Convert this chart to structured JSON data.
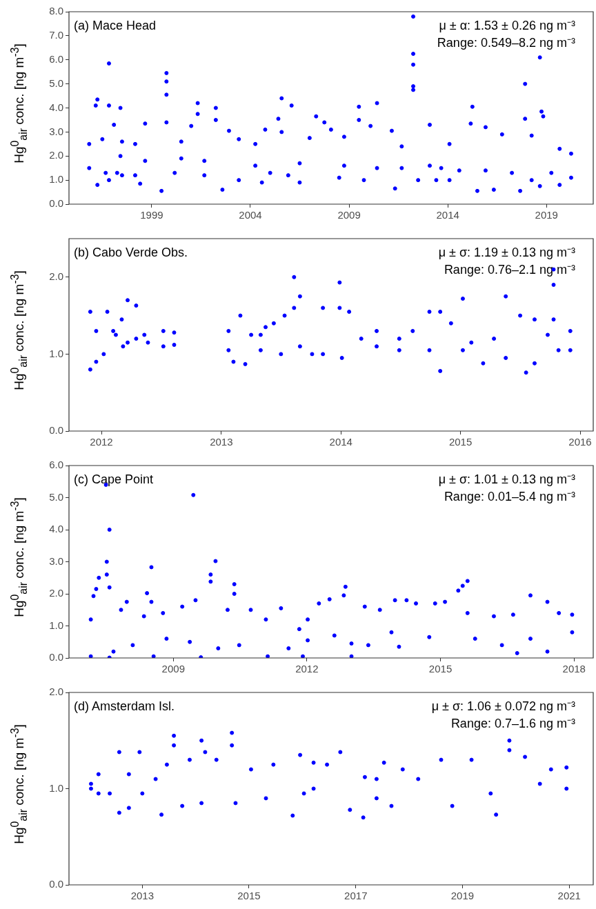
{
  "chart_data": [
    {
      "type": "scatter",
      "title": "(a) Mace Head",
      "ylabel": "Hg$^{0}$$_{air}$ conc. [ng m$^{-3}$]",
      "annotations": [
        "μ ± α: 1.53 ± 0.26 ng m⁻³",
        "Range: 0.549–8.2 ng m⁻³"
      ],
      "color": "#0000ff",
      "marker": "circle",
      "xlim": [
        "1994-10-23",
        "2021-05-15"
      ],
      "xticks": [
        "1999",
        "2004",
        "2009",
        "2014",
        "2019"
      ],
      "ylim": [
        0,
        8
      ],
      "yticks": [
        {
          "value": 0,
          "label": "0.0"
        },
        {
          "value": 1,
          "label": "1.0"
        },
        {
          "value": 2,
          "label": "2.0"
        },
        {
          "value": 3,
          "label": "3.0"
        },
        {
          "value": 4,
          "label": "4.0"
        },
        {
          "value": 5,
          "label": "5.0"
        },
        {
          "value": 6,
          "label": "6.0"
        },
        {
          "value": 7,
          "label": "7.0"
        },
        {
          "value": 8,
          "label": "8.0"
        }
      ],
      "x": [
        "1995-11",
        "1995-11",
        "1996-03",
        "1996-04",
        "1996-04",
        "1996-07",
        "1996-09",
        "1996-11",
        "1996-11",
        "1996-11",
        "1997-02",
        "1997-04",
        "1997-06",
        "1997-06",
        "1997-07",
        "1997-07",
        "1998-03",
        "1998-03",
        "1998-06",
        "1998-09",
        "1998-09",
        "1999-07",
        "1999-10",
        "1999-10",
        "1999-10",
        "1999-10",
        "2000-03",
        "2000-07",
        "2000-07",
        "2001-01",
        "2001-05",
        "2001-05",
        "2001-09",
        "2001-09",
        "2002-04",
        "2002-04",
        "2002-08",
        "2002-12",
        "2003-06",
        "2003-06",
        "2004-04",
        "2004-04",
        "2004-08",
        "2004-10",
        "2005-01",
        "2005-06",
        "2005-08",
        "2005-08",
        "2005-12",
        "2006-02",
        "2006-07",
        "2006-07",
        "2007-01",
        "2007-05",
        "2007-10",
        "2008-02",
        "2008-07",
        "2008-10",
        "2008-10",
        "2009-07",
        "2009-07",
        "2009-10",
        "2010-02",
        "2010-06",
        "2010-06",
        "2011-03",
        "2011-05",
        "2011-09",
        "2011-09",
        "2012-04",
        "2012-04",
        "2012-04",
        "2012-04",
        "2012-04",
        "2012-07",
        "2013-02",
        "2013-02",
        "2013-06",
        "2013-09",
        "2014-02",
        "2014-02",
        "2014-08",
        "2015-03",
        "2015-04",
        "2015-07",
        "2015-12",
        "2015-12",
        "2016-05",
        "2016-10",
        "2017-04",
        "2017-09",
        "2017-12",
        "2017-12",
        "2018-04",
        "2018-04",
        "2018-09",
        "2018-09",
        "2018-10",
        "2018-11",
        "2019-04",
        "2019-09",
        "2019-09",
        "2020-04",
        "2020-04"
      ],
      "values": [
        1.5,
        2.5,
        4.1,
        4.35,
        0.8,
        2.7,
        1.3,
        5.85,
        4.1,
        1.0,
        3.3,
        1.3,
        4.0,
        2.0,
        2.6,
        1.2,
        2.5,
        1.2,
        0.85,
        3.35,
        1.8,
        0.55,
        5.45,
        5.1,
        4.55,
        3.4,
        1.3,
        2.6,
        1.9,
        3.25,
        4.2,
        3.75,
        1.2,
        1.8,
        4.0,
        3.5,
        0.6,
        3.05,
        2.7,
        1.0,
        2.5,
        1.6,
        0.9,
        3.1,
        1.3,
        3.55,
        4.4,
        3.0,
        1.2,
        4.1,
        0.9,
        1.7,
        2.75,
        3.65,
        3.4,
        3.1,
        1.1,
        2.8,
        1.6,
        4.05,
        3.5,
        1.0,
        3.25,
        4.2,
        1.5,
        3.05,
        0.65,
        2.4,
        1.5,
        7.8,
        6.25,
        5.8,
        4.9,
        4.75,
        1.0,
        3.3,
        1.6,
        1.0,
        1.5,
        2.5,
        1.0,
        1.4,
        3.35,
        4.05,
        0.55,
        3.2,
        1.4,
        0.6,
        2.9,
        1.3,
        0.55,
        5.0,
        3.55,
        2.85,
        1.0,
        6.1,
        0.75,
        3.85,
        3.65,
        1.3,
        2.3,
        0.8,
        2.1,
        1.1
      ]
    },
    {
      "type": "scatter",
      "title": "(b) Cabo Verde Obs.",
      "ylabel": "Hg$^{0}$$_{air}$ conc. [ng m$^{-3}$]",
      "annotations": [
        "μ ± σ: 1.19 ± 0.13 ng m⁻³",
        "Range: 0.76–2.1 ng m⁻³"
      ],
      "color": "#0000ff",
      "marker": "circle",
      "xlim": [
        "2011-09-24",
        "2016-02-10"
      ],
      "xticks": [
        "2012",
        "2013",
        "2014",
        "2015",
        "2016"
      ],
      "ylim": [
        0,
        2.5
      ],
      "yticks": [
        {
          "value": 0,
          "label": "0.0"
        },
        {
          "value": 1,
          "label": "1.0"
        },
        {
          "value": 2,
          "label": "2.0"
        }
      ],
      "x": [
        "2011-11-28",
        "2011-11-28",
        "2011-12-16",
        "2011-12-16",
        "2012-01-08",
        "2012-01-19",
        "2012-02-06",
        "2012-02-14",
        "2012-03-03",
        "2012-03-07",
        "2012-03-21",
        "2012-03-21",
        "2012-04-16",
        "2012-04-16",
        "2012-05-11",
        "2012-05-22",
        "2012-07-08",
        "2012-07-08",
        "2012-08-10",
        "2012-08-10",
        "2013-01-23",
        "2013-01-23",
        "2013-02-07",
        "2013-02-28",
        "2013-03-15",
        "2013-04-02",
        "2013-05-01",
        "2013-05-01",
        "2013-05-16",
        "2013-06-10",
        "2013-07-02",
        "2013-07-13",
        "2013-08-11",
        "2013-08-11",
        "2013-08-29",
        "2013-08-29",
        "2013-10-05",
        "2013-11-07",
        "2013-11-07",
        "2013-12-28",
        "2013-12-28",
        "2014-01-04",
        "2014-01-26",
        "2014-03-04",
        "2014-04-20",
        "2014-04-20",
        "2014-06-28",
        "2014-06-28",
        "2014-08-08",
        "2014-09-28",
        "2014-09-28",
        "2014-10-31",
        "2014-10-31",
        "2014-12-03",
        "2015-01-08",
        "2015-01-08",
        "2015-02-03",
        "2015-03-11",
        "2015-04-13",
        "2015-05-19",
        "2015-05-19",
        "2015-07-02",
        "2015-07-20",
        "2015-08-15",
        "2015-08-15",
        "2015-09-24",
        "2015-10-12",
        "2015-10-12",
        "2015-10-12",
        "2015-10-27",
        "2015-12-02",
        "2015-12-02"
      ],
      "values": [
        1.55,
        0.8,
        1.3,
        0.9,
        1.0,
        1.55,
        1.3,
        1.25,
        1.45,
        1.1,
        1.7,
        1.15,
        1.63,
        1.2,
        1.25,
        1.15,
        1.3,
        1.1,
        1.28,
        1.12,
        1.3,
        1.05,
        0.9,
        1.5,
        0.87,
        1.25,
        1.05,
        1.25,
        1.35,
        1.4,
        1.0,
        1.5,
        2.0,
        1.6,
        1.75,
        1.1,
        1.0,
        1.6,
        1.0,
        1.93,
        1.6,
        0.95,
        1.55,
        1.2,
        1.3,
        1.1,
        1.2,
        1.05,
        1.3,
        1.55,
        1.05,
        1.55,
        0.78,
        1.4,
        1.72,
        1.05,
        1.15,
        0.88,
        1.2,
        1.75,
        0.95,
        1.5,
        0.76,
        1.45,
        0.88,
        1.25,
        2.1,
        1.9,
        1.45,
        1.05,
        1.3,
        1.05
      ]
    },
    {
      "type": "scatter",
      "title": "(c) Cape Point",
      "ylabel": "Hg$^{0}$$_{air}$ conc. [ng m$^{-3}$]",
      "annotations": [
        "μ ± σ: 1.01 ± 0.13 ng m⁻³",
        "Range: 0.01–5.4 ng m⁻³"
      ],
      "color": "#0000ff",
      "marker": "circle",
      "xlim": [
        "2006-08-29",
        "2018-06-07"
      ],
      "xticks": [
        "2009",
        "2012",
        "2015",
        "2018"
      ],
      "ylim": [
        0,
        6
      ],
      "yticks": [
        {
          "value": 0,
          "label": "0.0"
        },
        {
          "value": 1,
          "label": "1.0"
        },
        {
          "value": 2,
          "label": "2.0"
        },
        {
          "value": 3,
          "label": "3.0"
        },
        {
          "value": 4,
          "label": "4.0"
        },
        {
          "value": 5,
          "label": "5.0"
        },
        {
          "value": 6,
          "label": "6.0"
        }
      ],
      "x": [
        "2007-02-24",
        "2007-02-24",
        "2007-03-18",
        "2007-04-09",
        "2007-05-01",
        "2007-06-28",
        "2007-07-05",
        "2007-07-05",
        "2007-07-27",
        "2007-07-27",
        "2007-07-27",
        "2007-08-29",
        "2007-10-30",
        "2007-12-16",
        "2008-02-03",
        "2008-05-05",
        "2008-05-30",
        "2008-07-05",
        "2008-07-05",
        "2008-07-23",
        "2008-10-08",
        "2008-11-06",
        "2009-03-15",
        "2009-05-16",
        "2009-06-14",
        "2009-07-02",
        "2009-08-15",
        "2009-11-03",
        "2009-11-03",
        "2009-12-13",
        "2010-01-04",
        "2010-03-22",
        "2010-05-16",
        "2010-05-16",
        "2010-06-25",
        "2010-09-28",
        "2011-01-30",
        "2011-02-14",
        "2011-06-03",
        "2011-08-04",
        "2011-10-31",
        "2011-11-29",
        "2012-01-08",
        "2012-01-08",
        "2012-04-09",
        "2012-07-05",
        "2012-08-14",
        "2012-10-30",
        "2012-11-13",
        "2013-01-01",
        "2013-01-01",
        "2013-04-20",
        "2013-05-19",
        "2013-08-22",
        "2013-11-25",
        "2013-12-24",
        "2014-01-26",
        "2014-03-29",
        "2014-06-14",
        "2014-10-01",
        "2014-11-18",
        "2015-02-07",
        "2015-05-27",
        "2015-07-02",
        "2015-08-11",
        "2015-08-11",
        "2015-10-12",
        "2016-03-14",
        "2016-05-19",
        "2016-08-19",
        "2016-09-21",
        "2017-01-08",
        "2017-01-08",
        "2017-05-27",
        "2017-05-27",
        "2017-08-29",
        "2017-12-16",
        "2017-12-16"
      ],
      "values": [
        1.2,
        0.05,
        1.93,
        2.15,
        2.5,
        5.4,
        3.0,
        2.6,
        4.0,
        2.2,
        0.01,
        0.2,
        1.5,
        1.75,
        0.4,
        1.3,
        2.02,
        2.83,
        1.75,
        0.05,
        1.4,
        0.6,
        1.6,
        0.5,
        5.08,
        1.8,
        0.02,
        2.6,
        2.38,
        3.02,
        0.3,
        1.5,
        2.3,
        2.0,
        0.4,
        1.5,
        1.2,
        0.05,
        1.55,
        0.3,
        0.9,
        0.05,
        1.2,
        0.55,
        1.7,
        1.83,
        0.7,
        1.95,
        2.22,
        0.05,
        0.45,
        1.6,
        0.4,
        1.5,
        0.8,
        1.8,
        0.35,
        1.8,
        1.7,
        0.65,
        1.7,
        1.75,
        2.1,
        2.25,
        2.4,
        1.4,
        0.6,
        1.3,
        0.4,
        1.35,
        0.15,
        1.95,
        0.6,
        1.75,
        0.2,
        1.4,
        0.8,
        1.35
      ]
    },
    {
      "type": "scatter",
      "title": "(d) Amsterdam Isl.",
      "ylabel": "Hg$^{0}$$_{air}$ conc. [ng m$^{-3}$]",
      "annotations": [
        "μ ± σ: 1.06 ± 0.072 ng m⁻³",
        "Range: 0.7–1.6 ng m⁻³"
      ],
      "color": "#0000ff",
      "marker": "circle",
      "xlim": [
        "2011-08-18",
        "2021-06-14"
      ],
      "xticks": [
        "2013",
        "2015",
        "2017",
        "2019",
        "2021"
      ],
      "ylim": [
        0,
        2
      ],
      "yticks": [
        {
          "value": 0,
          "label": "0.0"
        },
        {
          "value": 1,
          "label": "1.0"
        },
        {
          "value": 2,
          "label": "2.0"
        }
      ],
      "x": [
        "2012-01-16",
        "2012-01-16",
        "2012-03-07",
        "2012-03-07",
        "2012-05-23",
        "2012-07-27",
        "2012-07-27",
        "2012-10-01",
        "2012-10-01",
        "2012-12-13",
        "2013-01-01",
        "2013-04-02",
        "2013-05-12",
        "2013-06-18",
        "2013-08-05",
        "2013-08-05",
        "2013-10-01",
        "2013-11-21",
        "2014-02-10",
        "2014-02-10",
        "2014-03-07",
        "2014-05-23",
        "2014-09-06",
        "2014-09-06",
        "2014-10-01",
        "2015-01-15",
        "2015-04-27",
        "2015-06-17",
        "2015-10-27",
        "2015-12-17",
        "2016-01-12",
        "2016-03-18",
        "2016-03-18",
        "2016-06-18",
        "2016-09-17",
        "2016-11-22",
        "2017-02-21",
        "2017-03-04",
        "2017-05-23",
        "2017-05-23",
        "2017-07-13",
        "2017-09-02",
        "2017-11-18",
        "2018-03-04",
        "2018-08-08",
        "2018-10-23",
        "2019-03-04",
        "2019-07-13",
        "2019-08-19",
        "2019-11-18",
        "2019-11-18",
        "2020-03-04",
        "2020-06-14",
        "2020-08-29",
        "2020-12-13",
        "2020-12-13"
      ],
      "values": [
        1.05,
        1.0,
        1.15,
        0.95,
        0.95,
        1.38,
        0.75,
        1.15,
        0.8,
        1.38,
        0.95,
        1.1,
        0.73,
        1.25,
        1.55,
        1.45,
        0.82,
        1.3,
        1.5,
        0.85,
        1.38,
        1.3,
        1.58,
        1.45,
        0.85,
        1.2,
        0.9,
        1.25,
        0.72,
        1.35,
        0.95,
        1.27,
        1.0,
        1.25,
        1.38,
        0.78,
        0.7,
        1.12,
        0.9,
        1.1,
        1.27,
        0.82,
        1.2,
        1.1,
        1.3,
        0.82,
        1.3,
        0.95,
        0.73,
        1.5,
        1.4,
        1.33,
        1.05,
        1.2,
        1.22,
        1.0
      ]
    }
  ]
}
